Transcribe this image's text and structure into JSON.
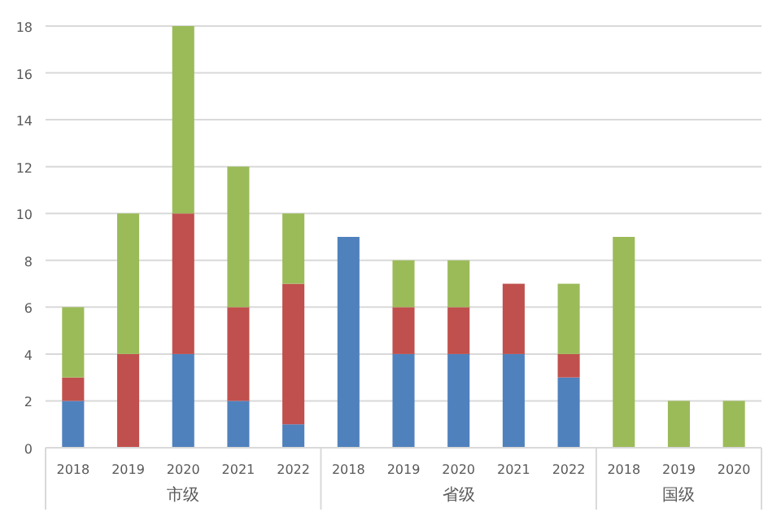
{
  "chart_data": {
    "type": "bar",
    "stacked": true,
    "categories": [
      "2018",
      "2019",
      "2020",
      "2021",
      "2022",
      "2018",
      "2019",
      "2020",
      "2021",
      "2022",
      "2018",
      "2019",
      "2020"
    ],
    "series": [
      {
        "color": "#4f81bd",
        "values": [
          2,
          0,
          4,
          2,
          1,
          9,
          4,
          4,
          4,
          3,
          0,
          0,
          0
        ]
      },
      {
        "color": "#c0504d",
        "values": [
          1,
          4,
          6,
          4,
          6,
          0,
          2,
          2,
          3,
          1,
          0,
          0,
          0
        ]
      },
      {
        "color": "#9bbb59",
        "values": [
          3,
          6,
          8,
          6,
          3,
          0,
          2,
          2,
          0,
          3,
          9,
          2,
          2
        ]
      }
    ],
    "ylim": [
      0,
      18
    ],
    "yticks": [
      0,
      2,
      4,
      6,
      8,
      10,
      12,
      14,
      16,
      18
    ],
    "grid": "y",
    "annotations": [
      "市级",
      "省级",
      "国级"
    ]
  }
}
